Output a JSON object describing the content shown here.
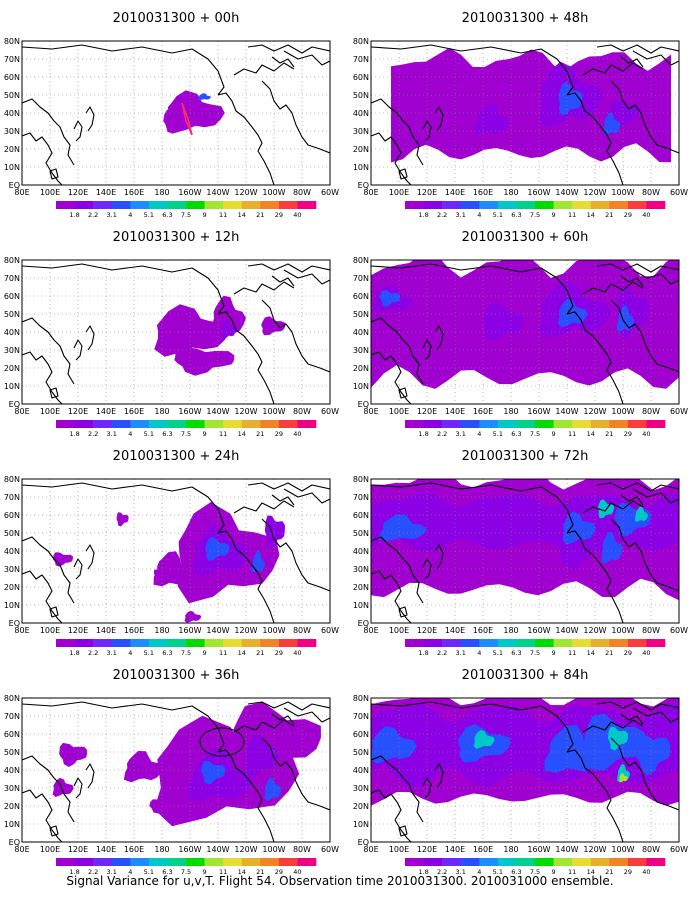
{
  "figure": {
    "caption": "Signal Variance for u,v,T. Flight 54. Observation time 2010031300. 2010031000 ensemble."
  },
  "colorbar": {
    "labels": [
      "1.8",
      "2.2",
      "3.1",
      "4",
      "5.1",
      "6.3",
      "7.5",
      "9",
      "11",
      "14",
      "21",
      "29",
      "40"
    ],
    "colors": [
      "#a000d0",
      "#8c00e6",
      "#6e28ff",
      "#2850ff",
      "#1e8cff",
      "#00c8c8",
      "#00d28c",
      "#00dc00",
      "#a0e632",
      "#e6dc32",
      "#e6af2d",
      "#f08228",
      "#fa3c3c",
      "#f00082"
    ]
  },
  "map_axes": {
    "x_ticks": [
      "80E",
      "100E",
      "120E",
      "140E",
      "160E",
      "180",
      "160W",
      "140W",
      "120W",
      "100W",
      "80W",
      "60W"
    ],
    "y_ticks": [
      "EQ",
      "10N",
      "20N",
      "30N",
      "40N",
      "50N",
      "60N",
      "70N",
      "80N"
    ]
  },
  "panels": [
    {
      "title": "2010031300 + 00h",
      "level": 0
    },
    {
      "title": "2010031300 + 48h",
      "level": 4
    },
    {
      "title": "2010031300 + 12h",
      "level": 1
    },
    {
      "title": "2010031300 + 60h",
      "level": 5
    },
    {
      "title": "2010031300 + 24h",
      "level": 2
    },
    {
      "title": "2010031300 + 72h",
      "level": 6
    },
    {
      "title": "2010031300 + 36h",
      "level": 3
    },
    {
      "title": "2010031300 + 84h",
      "level": 7
    }
  ]
}
